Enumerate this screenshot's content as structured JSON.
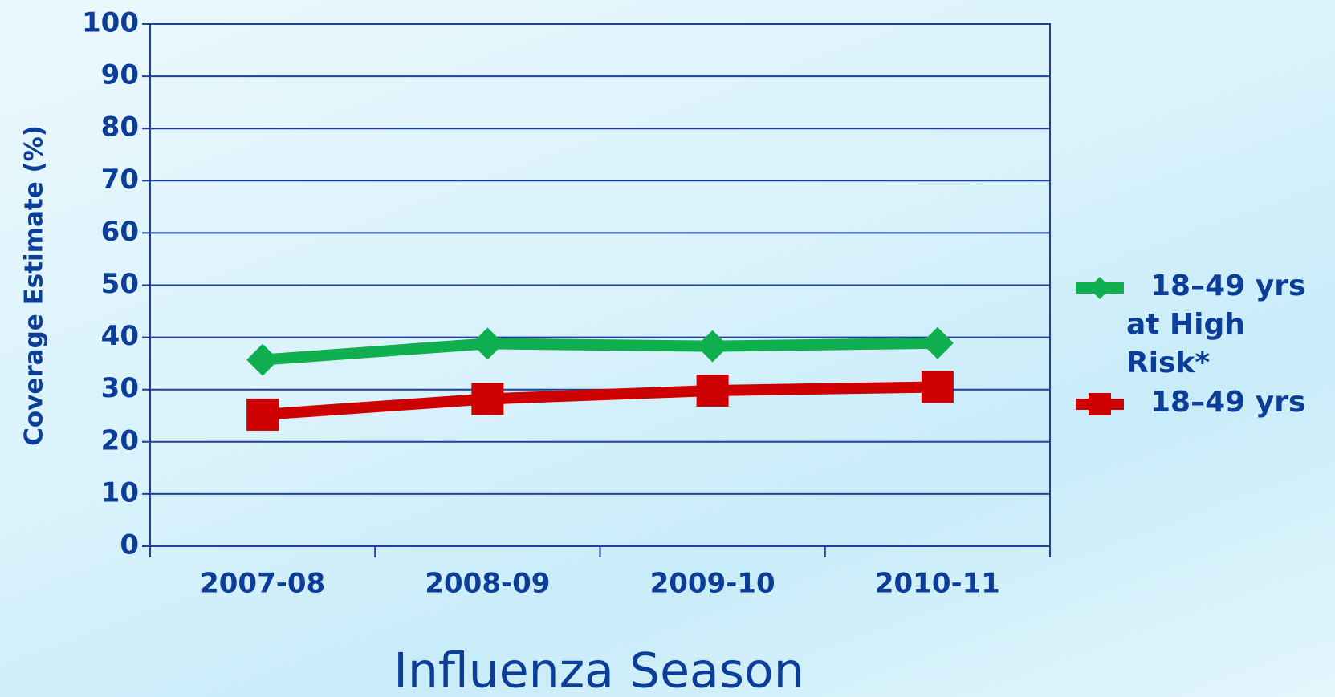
{
  "chart_data": {
    "type": "line",
    "x_label": "Influenza Season",
    "y_label": "Coverage Estimate (%)",
    "categories": [
      "2007-08",
      "2008-09",
      "2009-10",
      "2010-11"
    ],
    "series": [
      {
        "name": "18–49 yrs at High Risk*",
        "color": "#0fae4f",
        "marker": "diamond",
        "values": [
          35.7,
          38.8,
          38.3,
          38.9
        ]
      },
      {
        "name": "18–49 yrs",
        "color": "#cc0000",
        "marker": "square",
        "values": [
          25.2,
          28.2,
          29.8,
          30.5
        ]
      }
    ],
    "ylim": [
      0,
      100
    ],
    "yticks": [
      0,
      10,
      20,
      30,
      40,
      50,
      60,
      70,
      80,
      90,
      100
    ],
    "grid": true,
    "legend": "right"
  }
}
